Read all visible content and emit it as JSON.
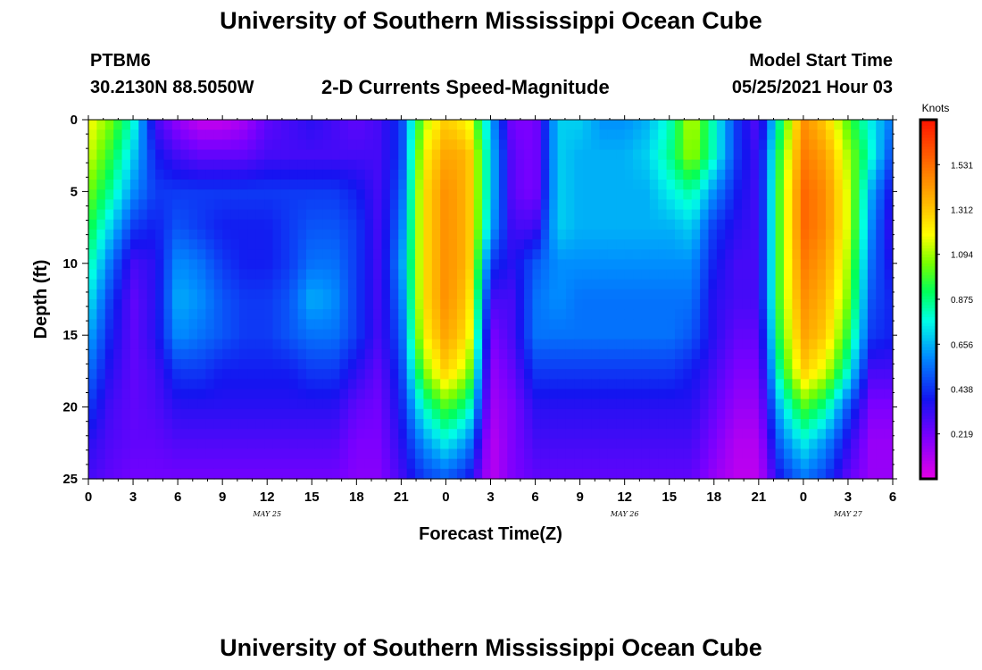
{
  "header": {
    "title": "University of Southern Mississippi Ocean Cube",
    "station_id": "PTBM6",
    "station_coords": "30.2130N  88.5050W",
    "subtitle": "2-D Currents Speed-Magnitude",
    "model_start_label": "Model Start Time",
    "model_start_value": "05/25/2021 Hour 03"
  },
  "footer": {
    "title": "University of Southern Mississippi Ocean Cube"
  },
  "chart_data": {
    "type": "heatmap",
    "title": "2-D Currents Speed-Magnitude",
    "xlabel": "Forecast Time(Z)",
    "ylabel": "Depth (ft)",
    "x_tick_labels": [
      "0",
      "3",
      "6",
      "9",
      "12",
      "15",
      "18",
      "21",
      "0",
      "3",
      "6",
      "9",
      "12",
      "15",
      "18",
      "21",
      "0",
      "3",
      "6"
    ],
    "x_range_hours": [
      0,
      54
    ],
    "date_labels": [
      {
        "text": "MAY 25",
        "hour": 12
      },
      {
        "text": "MAY 26",
        "hour": 36
      },
      {
        "text": "MAY 27",
        "hour": 51
      }
    ],
    "y_ticks": [
      0,
      5,
      10,
      15,
      20,
      25
    ],
    "y_range": [
      0,
      25
    ],
    "y_inverted": true,
    "colorbar": {
      "unit": "Knots",
      "ticks": [
        0.219,
        0.438,
        0.656,
        0.875,
        1.094,
        1.312,
        1.531
      ],
      "range": [
        0,
        1.75
      ]
    },
    "depths_ft": [
      0,
      2.5,
      5,
      7.5,
      10,
      12.5,
      15,
      17.5,
      20,
      22.5,
      25
    ],
    "times_hr": [
      0,
      1.5,
      3,
      4.5,
      6,
      7.5,
      9,
      10.5,
      12,
      13.5,
      15,
      16.5,
      18,
      19.5,
      21,
      22.5,
      24,
      25.5,
      27,
      28.5,
      30,
      31.5,
      33,
      34.5,
      36,
      37.5,
      39,
      40.5,
      42,
      43.5,
      45,
      46.5,
      48,
      49.5,
      51,
      52.5,
      54
    ],
    "values_knots": [
      [
        1.2,
        1.05,
        0.8,
        0.3,
        0.15,
        0.06,
        0.06,
        0.12,
        0.25,
        0.3,
        0.35,
        0.3,
        0.25,
        0.3,
        0.45,
        1.1,
        1.3,
        1.2,
        0.65,
        0.2,
        0.2,
        0.7,
        0.7,
        0.6,
        0.6,
        0.65,
        0.8,
        1.15,
        0.8,
        0.45,
        0.25,
        0.9,
        1.45,
        1.3,
        1.0,
        0.75,
        0.55
      ],
      [
        1.15,
        0.95,
        0.7,
        0.4,
        0.3,
        0.25,
        0.25,
        0.25,
        0.3,
        0.3,
        0.3,
        0.3,
        0.3,
        0.3,
        0.45,
        1.2,
        1.4,
        1.35,
        0.7,
        0.25,
        0.2,
        0.7,
        0.65,
        0.65,
        0.65,
        0.7,
        0.85,
        1.1,
        0.8,
        0.45,
        0.3,
        1.0,
        1.5,
        1.4,
        1.1,
        0.8,
        0.45
      ],
      [
        1.05,
        0.85,
        0.6,
        0.45,
        0.45,
        0.45,
        0.45,
        0.45,
        0.45,
        0.45,
        0.45,
        0.45,
        0.4,
        0.3,
        0.5,
        1.25,
        1.45,
        1.35,
        0.7,
        0.25,
        0.2,
        0.7,
        0.65,
        0.65,
        0.65,
        0.65,
        0.75,
        0.85,
        0.6,
        0.4,
        0.3,
        1.05,
        1.55,
        1.45,
        1.15,
        0.65,
        0.35
      ],
      [
        0.95,
        0.7,
        0.45,
        0.4,
        0.5,
        0.45,
        0.4,
        0.4,
        0.4,
        0.45,
        0.5,
        0.5,
        0.45,
        0.3,
        0.55,
        1.25,
        1.45,
        1.35,
        0.65,
        0.3,
        0.3,
        0.7,
        0.65,
        0.65,
        0.65,
        0.65,
        0.65,
        0.7,
        0.45,
        0.35,
        0.3,
        1.05,
        1.55,
        1.45,
        1.15,
        0.6,
        0.3
      ],
      [
        0.85,
        0.55,
        0.3,
        0.35,
        0.6,
        0.55,
        0.45,
        0.4,
        0.4,
        0.45,
        0.55,
        0.55,
        0.45,
        0.3,
        0.6,
        1.25,
        1.45,
        1.35,
        0.45,
        0.35,
        0.5,
        0.6,
        0.6,
        0.6,
        0.6,
        0.6,
        0.6,
        0.6,
        0.4,
        0.3,
        0.3,
        1.05,
        1.5,
        1.4,
        1.1,
        0.55,
        0.35
      ],
      [
        0.75,
        0.45,
        0.25,
        0.35,
        0.65,
        0.6,
        0.5,
        0.45,
        0.45,
        0.5,
        0.65,
        0.6,
        0.45,
        0.3,
        0.55,
        1.25,
        1.45,
        1.3,
        0.3,
        0.3,
        0.55,
        0.6,
        0.55,
        0.55,
        0.55,
        0.55,
        0.55,
        0.55,
        0.35,
        0.3,
        0.3,
        1.05,
        1.45,
        1.35,
        1.05,
        0.5,
        0.4
      ],
      [
        0.65,
        0.4,
        0.25,
        0.35,
        0.6,
        0.55,
        0.5,
        0.45,
        0.45,
        0.5,
        0.55,
        0.55,
        0.45,
        0.3,
        0.5,
        1.2,
        1.4,
        1.25,
        0.2,
        0.3,
        0.55,
        0.55,
        0.55,
        0.55,
        0.55,
        0.55,
        0.55,
        0.5,
        0.35,
        0.25,
        0.25,
        1.0,
        1.4,
        1.3,
        0.95,
        0.45,
        0.4
      ],
      [
        0.55,
        0.35,
        0.25,
        0.3,
        0.45,
        0.45,
        0.4,
        0.4,
        0.4,
        0.4,
        0.45,
        0.45,
        0.35,
        0.25,
        0.45,
        1.05,
        1.3,
        1.1,
        0.15,
        0.25,
        0.45,
        0.45,
        0.45,
        0.45,
        0.45,
        0.45,
        0.45,
        0.4,
        0.3,
        0.2,
        0.2,
        0.9,
        1.3,
        1.15,
        0.8,
        0.3,
        0.3
      ],
      [
        0.45,
        0.3,
        0.25,
        0.28,
        0.35,
        0.35,
        0.35,
        0.35,
        0.35,
        0.35,
        0.35,
        0.35,
        0.25,
        0.22,
        0.4,
        0.8,
        1.0,
        0.85,
        0.12,
        0.2,
        0.35,
        0.35,
        0.35,
        0.35,
        0.35,
        0.35,
        0.35,
        0.35,
        0.25,
        0.15,
        0.15,
        0.7,
        1.0,
        0.85,
        0.5,
        0.2,
        0.2
      ],
      [
        0.35,
        0.28,
        0.25,
        0.25,
        0.28,
        0.28,
        0.28,
        0.28,
        0.28,
        0.28,
        0.28,
        0.28,
        0.2,
        0.2,
        0.35,
        0.6,
        0.75,
        0.6,
        0.08,
        0.2,
        0.3,
        0.3,
        0.3,
        0.3,
        0.3,
        0.3,
        0.3,
        0.3,
        0.2,
        0.1,
        0.1,
        0.55,
        0.75,
        0.6,
        0.35,
        0.15,
        0.15
      ],
      [
        0.3,
        0.25,
        0.22,
        0.22,
        0.22,
        0.22,
        0.22,
        0.22,
        0.22,
        0.22,
        0.22,
        0.22,
        0.18,
        0.18,
        0.3,
        0.45,
        0.5,
        0.4,
        0.08,
        0.2,
        0.25,
        0.25,
        0.25,
        0.25,
        0.25,
        0.25,
        0.25,
        0.25,
        0.15,
        0.08,
        0.08,
        0.4,
        0.55,
        0.45,
        0.25,
        0.15,
        0.15
      ]
    ]
  }
}
